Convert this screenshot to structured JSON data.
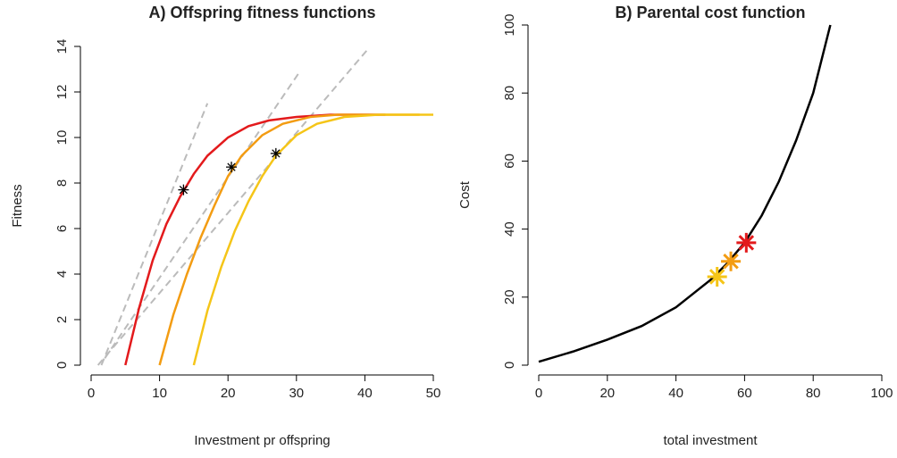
{
  "chart_data": [
    {
      "type": "line",
      "title": "A) Offspring fitness functions",
      "xlabel": "Investment pr offspring",
      "ylabel": "Fitness",
      "xlim": [
        0,
        50
      ],
      "ylim": [
        0,
        14
      ],
      "xticks": [
        0,
        10,
        20,
        30,
        40,
        50
      ],
      "yticks": [
        0,
        2,
        4,
        6,
        8,
        10,
        12,
        14
      ],
      "grid": false,
      "series": [
        {
          "color": "#bbbbbb",
          "line": "dashed",
          "x": [
            1.5,
            17
          ],
          "values": [
            0,
            11.5
          ]
        },
        {
          "color": "#bbbbbb",
          "line": "dashed",
          "x": [
            2,
            30.5
          ],
          "values": [
            0.3,
            12.9
          ]
        },
        {
          "color": "#bbbbbb",
          "line": "dashed",
          "x": [
            1,
            40.5
          ],
          "values": [
            0,
            13.9
          ]
        },
        {
          "color": "#e31a1c",
          "line": "solid",
          "x": [
            5,
            7,
            9,
            11,
            13,
            15,
            17,
            20,
            23,
            26,
            30,
            35,
            43
          ],
          "values": [
            0,
            2.5,
            4.6,
            6.2,
            7.4,
            8.4,
            9.2,
            10.0,
            10.5,
            10.75,
            10.9,
            11,
            11
          ]
        },
        {
          "color": "#f39c12",
          "line": "solid",
          "x": [
            10,
            12,
            14,
            16,
            18,
            20,
            22,
            25,
            28,
            32,
            36,
            48
          ],
          "values": [
            0,
            2.2,
            4.0,
            5.6,
            7.0,
            8.3,
            9.2,
            10.1,
            10.6,
            10.9,
            11,
            11
          ]
        },
        {
          "color": "#f5c518",
          "line": "solid",
          "x": [
            15,
            17,
            19,
            21,
            23,
            25,
            27,
            30,
            33,
            37,
            42,
            50
          ],
          "values": [
            0,
            2.4,
            4.3,
            5.9,
            7.2,
            8.3,
            9.2,
            10.1,
            10.6,
            10.9,
            11,
            11
          ]
        },
        {
          "color": "#000000",
          "line": "none",
          "marker": "star",
          "x": [
            13.5,
            20.5,
            27
          ],
          "values": [
            7.7,
            8.7,
            9.3
          ]
        }
      ]
    },
    {
      "type": "line",
      "title": "B) Parental cost function",
      "xlabel": "total investment",
      "ylabel": "Cost",
      "xlim": [
        0,
        100
      ],
      "ylim": [
        0,
        100
      ],
      "xticks": [
        0,
        20,
        40,
        60,
        80,
        100
      ],
      "yticks": [
        0,
        20,
        40,
        60,
        80,
        100
      ],
      "grid": false,
      "series": [
        {
          "color": "#000000",
          "line": "solid",
          "x": [
            0,
            10,
            20,
            30,
            40,
            50,
            55,
            60,
            65,
            70,
            75,
            80,
            85
          ],
          "values": [
            1,
            4,
            7.5,
            11.5,
            17,
            25,
            30,
            36,
            44,
            54,
            66,
            80,
            100
          ]
        },
        {
          "color": "#f5c518",
          "line": "none",
          "marker": "bigstar",
          "x": [
            52
          ],
          "values": [
            26
          ]
        },
        {
          "color": "#f39c12",
          "line": "none",
          "marker": "bigstar",
          "x": [
            56
          ],
          "values": [
            30.5
          ]
        },
        {
          "color": "#e31a1c",
          "line": "none",
          "marker": "bigstar",
          "x": [
            60.5
          ],
          "values": [
            36
          ]
        }
      ]
    }
  ]
}
